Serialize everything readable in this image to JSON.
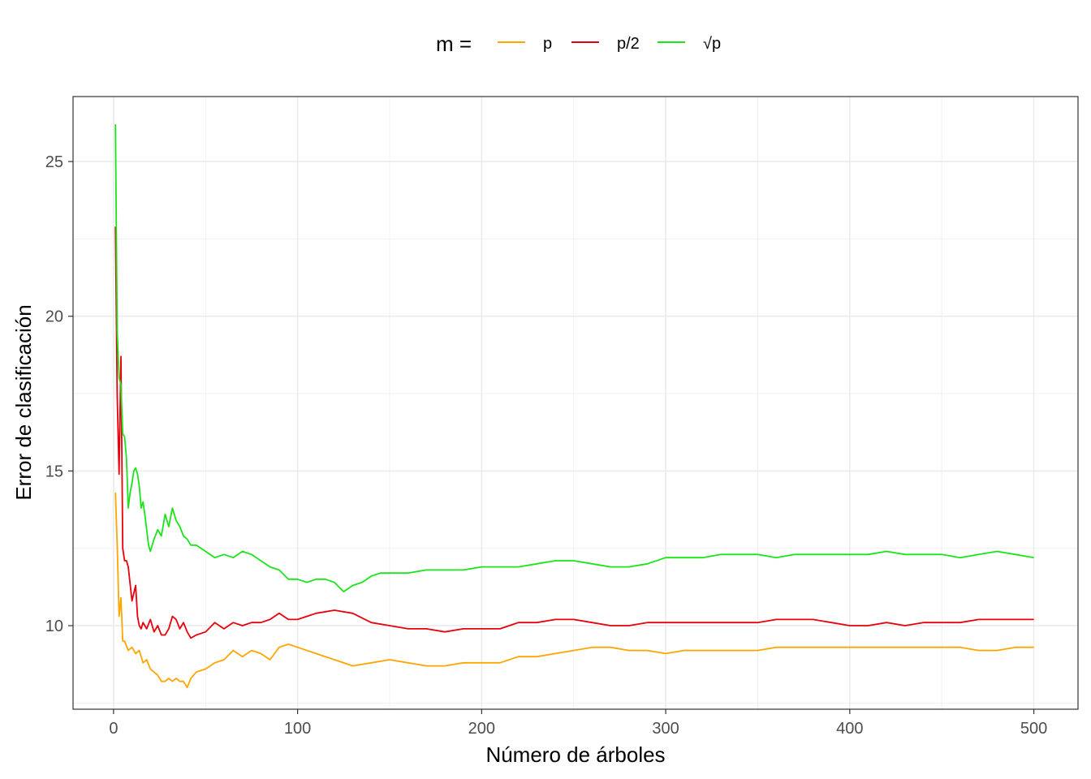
{
  "chart_data": {
    "type": "line",
    "title": "",
    "xlabel": "Número de árboles",
    "ylabel": "Error de clasificación",
    "xlim": [
      -22,
      524
    ],
    "ylim": [
      7.3,
      27.1
    ],
    "x_ticks": [
      0,
      100,
      200,
      300,
      400,
      500
    ],
    "x_tick_labels": [
      "0",
      "100",
      "200",
      "300",
      "400",
      "500"
    ],
    "y_ticks": [
      10,
      15,
      20,
      25
    ],
    "y_tick_labels": [
      "10",
      "15",
      "20",
      "25"
    ],
    "grid": true,
    "legend": {
      "position": "top",
      "title": "m =",
      "labels": [
        "p",
        "p/2",
        "√p"
      ]
    },
    "series": [
      {
        "name": "p",
        "color": "#FFA500",
        "x": [
          1,
          2,
          3,
          4,
          5,
          6,
          8,
          10,
          12,
          14,
          16,
          18,
          20,
          22,
          24,
          26,
          28,
          30,
          32,
          34,
          36,
          38,
          40,
          42,
          45,
          50,
          55,
          60,
          65,
          70,
          75,
          80,
          85,
          90,
          95,
          100,
          110,
          120,
          130,
          140,
          150,
          160,
          170,
          180,
          190,
          200,
          210,
          220,
          230,
          240,
          250,
          260,
          270,
          280,
          290,
          300,
          310,
          320,
          330,
          340,
          350,
          360,
          370,
          380,
          390,
          400,
          410,
          420,
          430,
          440,
          450,
          460,
          470,
          480,
          490,
          500
        ],
        "y": [
          14.3,
          12.6,
          10.3,
          10.9,
          9.5,
          9.5,
          9.2,
          9.3,
          9.1,
          9.2,
          8.8,
          8.9,
          8.6,
          8.5,
          8.4,
          8.2,
          8.2,
          8.3,
          8.2,
          8.3,
          8.2,
          8.2,
          8.0,
          8.3,
          8.5,
          8.6,
          8.8,
          8.9,
          9.2,
          9.0,
          9.2,
          9.1,
          8.9,
          9.3,
          9.4,
          9.3,
          9.1,
          8.9,
          8.7,
          8.8,
          8.9,
          8.8,
          8.7,
          8.7,
          8.8,
          8.8,
          8.8,
          9.0,
          9.0,
          9.1,
          9.2,
          9.3,
          9.3,
          9.2,
          9.2,
          9.1,
          9.2,
          9.2,
          9.2,
          9.2,
          9.2,
          9.3,
          9.3,
          9.3,
          9.3,
          9.3,
          9.3,
          9.3,
          9.3,
          9.3,
          9.3,
          9.3,
          9.2,
          9.2,
          9.3,
          9.3
        ]
      },
      {
        "name": "p/2",
        "color": "#E8000D",
        "x": [
          1,
          2,
          3,
          4,
          5,
          6,
          7,
          8,
          10,
          12,
          13,
          14,
          15,
          16,
          18,
          20,
          22,
          24,
          26,
          28,
          30,
          32,
          34,
          36,
          38,
          40,
          42,
          45,
          50,
          55,
          60,
          65,
          70,
          75,
          80,
          85,
          90,
          95,
          100,
          110,
          120,
          130,
          140,
          150,
          160,
          170,
          180,
          190,
          200,
          210,
          220,
          230,
          240,
          250,
          260,
          270,
          280,
          290,
          300,
          310,
          320,
          330,
          340,
          350,
          360,
          370,
          380,
          390,
          400,
          410,
          420,
          430,
          440,
          450,
          460,
          470,
          480,
          490,
          500
        ],
        "y": [
          22.9,
          17.4,
          14.9,
          18.7,
          12.5,
          12.1,
          12.1,
          11.9,
          10.8,
          11.3,
          10.3,
          10.0,
          9.9,
          10.1,
          9.9,
          10.2,
          9.8,
          10.0,
          9.7,
          9.7,
          9.9,
          10.3,
          10.2,
          9.9,
          10.1,
          9.8,
          9.6,
          9.7,
          9.8,
          10.1,
          9.9,
          10.1,
          10.0,
          10.1,
          10.1,
          10.2,
          10.4,
          10.2,
          10.2,
          10.4,
          10.5,
          10.4,
          10.1,
          10.0,
          9.9,
          9.9,
          9.8,
          9.9,
          9.9,
          9.9,
          10.1,
          10.1,
          10.2,
          10.2,
          10.1,
          10.0,
          10.0,
          10.1,
          10.1,
          10.1,
          10.1,
          10.1,
          10.1,
          10.1,
          10.2,
          10.2,
          10.2,
          10.1,
          10.0,
          10.0,
          10.1,
          10.0,
          10.1,
          10.1,
          10.1,
          10.2,
          10.2,
          10.2,
          10.2
        ]
      },
      {
        "name": "√p",
        "color": "#1AE51A",
        "x": [
          1,
          2,
          3,
          4,
          5,
          6,
          7,
          8,
          9,
          10,
          11,
          12,
          13,
          14,
          15,
          16,
          17,
          18,
          19,
          20,
          22,
          24,
          26,
          28,
          30,
          32,
          34,
          36,
          38,
          40,
          42,
          45,
          50,
          55,
          60,
          65,
          70,
          75,
          80,
          85,
          90,
          95,
          100,
          105,
          110,
          115,
          120,
          125,
          130,
          135,
          140,
          145,
          150,
          160,
          170,
          180,
          190,
          200,
          210,
          220,
          230,
          240,
          250,
          260,
          270,
          280,
          290,
          300,
          310,
          320,
          330,
          340,
          350,
          360,
          370,
          380,
          390,
          400,
          410,
          420,
          430,
          440,
          450,
          460,
          470,
          480,
          490,
          500
        ],
        "y": [
          26.2,
          19.5,
          18.0,
          17.8,
          16.2,
          16.1,
          15.4,
          13.8,
          14.3,
          14.6,
          15.0,
          15.1,
          14.9,
          14.5,
          13.8,
          14.0,
          13.6,
          13.1,
          12.6,
          12.4,
          12.8,
          13.1,
          12.9,
          13.6,
          13.2,
          13.8,
          13.4,
          13.2,
          12.9,
          12.8,
          12.6,
          12.6,
          12.4,
          12.2,
          12.3,
          12.2,
          12.4,
          12.3,
          12.1,
          11.9,
          11.8,
          11.5,
          11.5,
          11.4,
          11.5,
          11.5,
          11.4,
          11.1,
          11.3,
          11.4,
          11.6,
          11.7,
          11.7,
          11.7,
          11.8,
          11.8,
          11.8,
          11.9,
          11.9,
          11.9,
          12.0,
          12.1,
          12.1,
          12.0,
          11.9,
          11.9,
          12.0,
          12.2,
          12.2,
          12.2,
          12.3,
          12.3,
          12.3,
          12.2,
          12.3,
          12.3,
          12.3,
          12.3,
          12.3,
          12.4,
          12.3,
          12.3,
          12.3,
          12.2,
          12.3,
          12.4,
          12.3,
          12.2
        ]
      }
    ]
  }
}
